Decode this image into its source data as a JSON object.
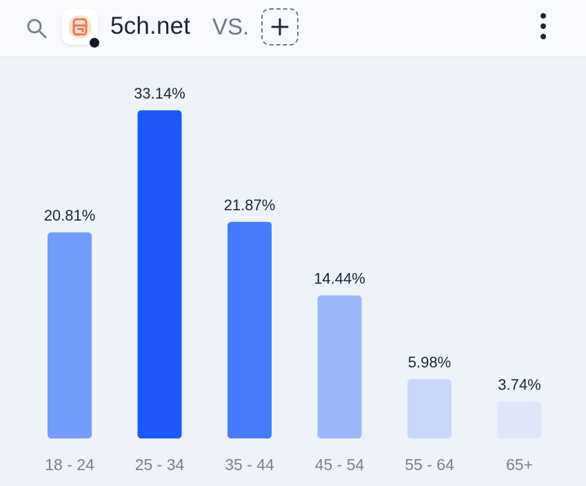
{
  "header": {
    "site_name": "5ch.net",
    "vs_label": "VS.",
    "icons": {
      "search": "search-icon",
      "favicon": "5ch-logo-icon",
      "add": "plus-icon",
      "more": "more-vertical-icon"
    }
  },
  "colors": {
    "bar_shades": [
      "#719bfc",
      "#1c58fc",
      "#457bfc",
      "#9ab7fb",
      "#c9d7fa",
      "#dfe6f9"
    ],
    "value_label": "#1c2537",
    "tick_label": "#7a818e"
  },
  "chart_data": {
    "type": "bar",
    "title": "",
    "xlabel": "",
    "ylabel": "",
    "categories": [
      "18 - 24",
      "25 - 34",
      "35 - 44",
      "45 - 54",
      "55 - 64",
      "65+"
    ],
    "values": [
      20.81,
      33.14,
      21.87,
      14.44,
      5.98,
      3.74
    ],
    "value_labels": [
      "20.81%",
      "33.14%",
      "21.87%",
      "14.44%",
      "5.98%",
      "3.74%"
    ],
    "ylim": [
      0,
      33.14
    ],
    "grid": false,
    "legend": "none"
  }
}
